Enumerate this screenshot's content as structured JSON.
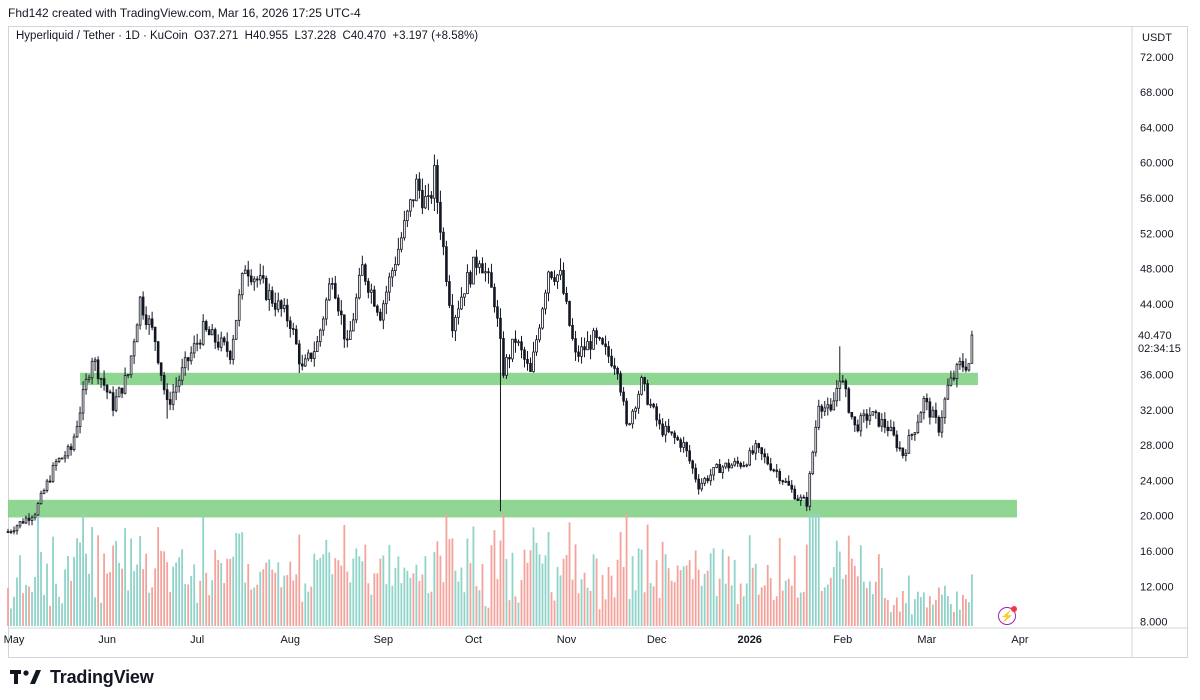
{
  "header": {
    "credit": "Fhd142 created with TradingView.com, Mar 16, 2026 17:25 UTC-4"
  },
  "legend": {
    "symbol": "Hyperliquid / Tether · 1D · KuCoin",
    "open_label": "O",
    "open": "37.271",
    "high_label": "H",
    "high": "40.955",
    "low_label": "L",
    "low": "37.228",
    "close_label": "C",
    "close": "40.470",
    "change": "+3.197 (+8.58%)"
  },
  "colors": {
    "up": "#131722",
    "down": "#131722",
    "zone": "#7ccf80",
    "vol_up": "#8fd3c9",
    "vol_down": "#f4a39c",
    "price_label_bg": "#ffffff"
  },
  "price_label": {
    "value": "40.470",
    "countdown": "02:34:15"
  },
  "footer": {
    "brand": "TradingView",
    "logo": "tradingview-logo-icon"
  },
  "chart_data": {
    "type": "candlestick",
    "currency": "USDT",
    "y_axis_ticks": [
      "72.000",
      "68.000",
      "64.000",
      "60.000",
      "56.000",
      "52.000",
      "48.000",
      "44.000",
      "40.470",
      "36.000",
      "32.000",
      "28.000",
      "24.000",
      "20.000",
      "16.000",
      "12.000",
      "8.000"
    ],
    "ylim": [
      7.5,
      73
    ],
    "x_axis_ticks": [
      "May",
      "Jun",
      "Jul",
      "Aug",
      "Sep",
      "Oct",
      "Nov",
      "Dec",
      "2026",
      "Feb",
      "Mar",
      "Apr"
    ],
    "x_range": [
      "2025-04-29",
      "2026-04-15"
    ],
    "support_zones": [
      {
        "from": 34.8,
        "to": 36.2,
        "start": "2025-05-23",
        "end": "2026-03-18"
      },
      {
        "from": 19.8,
        "to": 21.8,
        "start": "2025-04-29",
        "end": "2026-03-31"
      }
    ],
    "price_path": [
      [
        "2025-04-29",
        18.2
      ],
      [
        "2025-05-08",
        20.4
      ],
      [
        "2025-05-15",
        26.0
      ],
      [
        "2025-05-20",
        27.5
      ],
      [
        "2025-05-27",
        38.0
      ],
      [
        "2025-06-03",
        32.5
      ],
      [
        "2025-06-08",
        36.0
      ],
      [
        "2025-06-12",
        44.5
      ],
      [
        "2025-06-17",
        40.0
      ],
      [
        "2025-06-21",
        32.5
      ],
      [
        "2025-06-27",
        37.0
      ],
      [
        "2025-07-03",
        41.0
      ],
      [
        "2025-07-12",
        38.5
      ],
      [
        "2025-07-17",
        48.5
      ],
      [
        "2025-07-25",
        45.0
      ],
      [
        "2025-08-01",
        42.0
      ],
      [
        "2025-08-05",
        36.5
      ],
      [
        "2025-08-10",
        39.5
      ],
      [
        "2025-08-15",
        47.5
      ],
      [
        "2025-08-20",
        39.0
      ],
      [
        "2025-08-25",
        48.0
      ],
      [
        "2025-08-31",
        43.0
      ],
      [
        "2025-09-07",
        51.5
      ],
      [
        "2025-09-12",
        57.5
      ],
      [
        "2025-09-16",
        55.0
      ],
      [
        "2025-09-18",
        58.5
      ],
      [
        "2025-09-24",
        42.0
      ],
      [
        "2025-09-28",
        46.0
      ],
      [
        "2025-10-03",
        49.5
      ],
      [
        "2025-10-08",
        44.5
      ],
      [
        "2025-10-11",
        36.5
      ],
      [
        "2025-10-15",
        40.0
      ],
      [
        "2025-10-20",
        36.0
      ],
      [
        "2025-10-26",
        48.0
      ],
      [
        "2025-10-30",
        47.0
      ],
      [
        "2025-11-04",
        38.0
      ],
      [
        "2025-11-10",
        40.0
      ],
      [
        "2025-11-18",
        37.0
      ],
      [
        "2025-11-21",
        30.0
      ],
      [
        "2025-11-26",
        35.0
      ],
      [
        "2025-12-02",
        30.0
      ],
      [
        "2025-12-10",
        28.0
      ],
      [
        "2025-12-15",
        23.5
      ],
      [
        "2025-12-22",
        25.5
      ],
      [
        "2025-12-30",
        26.0
      ],
      [
        "2026-01-03",
        27.5
      ],
      [
        "2026-01-10",
        25.0
      ],
      [
        "2026-01-17",
        22.0
      ],
      [
        "2026-01-20",
        21.5
      ],
      [
        "2026-01-24",
        33.0
      ],
      [
        "2026-01-28",
        31.5
      ],
      [
        "2026-01-31",
        36.0
      ],
      [
        "2026-02-05",
        30.0
      ],
      [
        "2026-02-10",
        31.5
      ],
      [
        "2026-02-16",
        30.0
      ],
      [
        "2026-02-21",
        27.0
      ],
      [
        "2026-02-25",
        30.0
      ],
      [
        "2026-02-28",
        33.0
      ],
      [
        "2026-03-05",
        30.0
      ],
      [
        "2026-03-08",
        34.5
      ],
      [
        "2026-03-12",
        37.0
      ],
      [
        "2026-03-15",
        37.27
      ],
      [
        "2026-03-16",
        40.47
      ]
    ],
    "spikes": [
      {
        "date": "2025-10-10",
        "low": 20.5,
        "high": 36.5
      },
      {
        "date": "2025-06-21",
        "low": 31.0,
        "high": 35.0
      },
      {
        "date": "2026-01-20",
        "low": 20.8,
        "high": 22.5
      },
      {
        "date": "2026-01-31",
        "low": 33.0,
        "high": 39.2
      },
      {
        "date": "2026-03-16",
        "low": 37.228,
        "high": 40.955
      }
    ]
  }
}
